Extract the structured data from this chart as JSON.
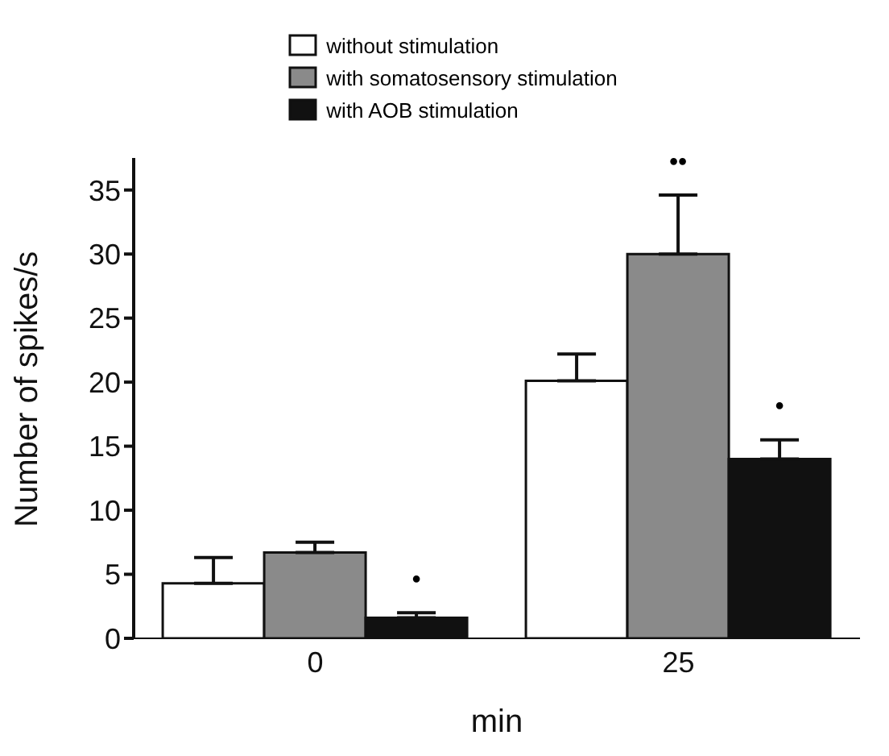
{
  "chart_data": {
    "type": "bar",
    "xlabel": "min",
    "ylabel": "Number of spikes/s",
    "categories": [
      "0",
      "25"
    ],
    "series": [
      {
        "name": "without stimulation",
        "color": "#ffffff",
        "values": [
          4.3,
          20.1
        ],
        "errors": [
          [
            4.3,
            6.3
          ],
          [
            20.1,
            22.2
          ]
        ]
      },
      {
        "name": "with somatosensory stimulation",
        "color": "#8a8a8a",
        "values": [
          6.7,
          30.0
        ],
        "errors": [
          [
            6.7,
            7.5
          ],
          [
            30.0,
            34.6
          ]
        ],
        "value_labels": [
          null,
          "••"
        ]
      },
      {
        "name": "with AOB stimulation",
        "color": "#111111",
        "values": [
          1.6,
          14.0
        ],
        "errors": [
          [
            1.6,
            2.0
          ],
          [
            14.0,
            15.5
          ]
        ],
        "value_labels": [
          "•",
          "•"
        ]
      }
    ],
    "ylim": [
      0,
      37.5
    ],
    "yticks": [
      0,
      5,
      10,
      15,
      20,
      25,
      30,
      35
    ],
    "grid": false,
    "legend": "top"
  }
}
